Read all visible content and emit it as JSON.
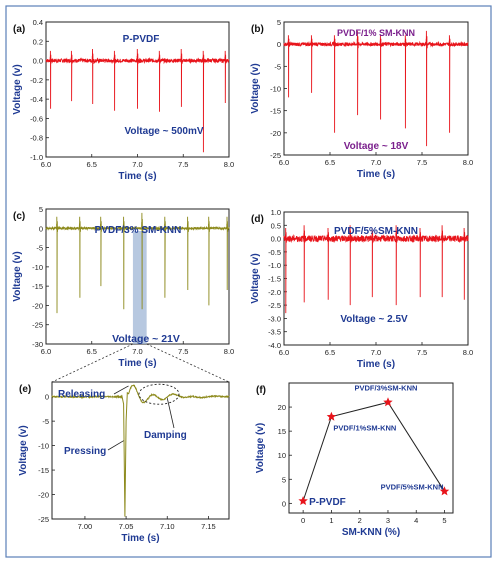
{
  "figure": {
    "border_color": "#5b7fb8",
    "axis_text_color": "#1f3a93",
    "purple_text_color": "#7a1f8c",
    "panel_bg": "#ffffff"
  },
  "chart_data": [
    {
      "id": "a",
      "type": "line",
      "panel_label": "(a)",
      "title": "P-PVDF",
      "annotation": "Voltage ~ 500mV",
      "xlabel": "Time (s)",
      "ylabel": "Voltage (v)",
      "xlim": [
        6.0,
        8.0
      ],
      "ylim": [
        -1.0,
        0.4
      ],
      "xticks": [
        "6.0",
        "6.5",
        "7.0",
        "7.5",
        "8.0"
      ],
      "yticks": [
        "0.4",
        "0.2",
        "0.0",
        "-0.2",
        "-0.4",
        "-0.6",
        "-0.8",
        "-1.0"
      ],
      "color": "#e8141b",
      "baseline": 0.0,
      "noise": 0.02,
      "spikes": [
        {
          "t": 6.05,
          "up": 0.1,
          "down": -0.5
        },
        {
          "t": 6.28,
          "up": 0.1,
          "down": -0.42
        },
        {
          "t": 6.51,
          "up": 0.12,
          "down": -0.45
        },
        {
          "t": 6.75,
          "up": 0.1,
          "down": -0.52
        },
        {
          "t": 7.0,
          "up": 0.12,
          "down": -0.5
        },
        {
          "t": 7.24,
          "up": 0.1,
          "down": -0.53
        },
        {
          "t": 7.48,
          "up": 0.12,
          "down": -0.48
        },
        {
          "t": 7.72,
          "up": 0.1,
          "down": -0.95
        },
        {
          "t": 7.96,
          "up": 0.1,
          "down": -0.44
        }
      ]
    },
    {
      "id": "b",
      "type": "line",
      "panel_label": "(b)",
      "title": "PVDF/1% SM-KNN",
      "annotation": "Voltage ~ 18V",
      "xlabel": "Time (s)",
      "ylabel": "Voltage (v)",
      "xlim": [
        6.0,
        8.0
      ],
      "ylim": [
        -25,
        5
      ],
      "xticks": [
        "6.0",
        "6.5",
        "7.0",
        "7.5",
        "8.0"
      ],
      "yticks": [
        "5",
        "0",
        "-5",
        "-10",
        "-15",
        "-20",
        "-25"
      ],
      "color": "#e8141b",
      "baseline": 0.0,
      "noise": 0.4,
      "spikes": [
        {
          "t": 6.05,
          "up": 2,
          "down": -12
        },
        {
          "t": 6.3,
          "up": 2,
          "down": -11
        },
        {
          "t": 6.55,
          "up": 2,
          "down": -20
        },
        {
          "t": 6.8,
          "up": 3,
          "down": -16
        },
        {
          "t": 7.05,
          "up": 2,
          "down": -17
        },
        {
          "t": 7.32,
          "up": 2,
          "down": -19
        },
        {
          "t": 7.55,
          "up": 3,
          "down": -23
        },
        {
          "t": 7.8,
          "up": 2,
          "down": -20
        }
      ]
    },
    {
      "id": "c",
      "type": "line",
      "panel_label": "(c)",
      "title": "PVDF/3% SM-KNN",
      "annotation": "Voltage ~ 21V",
      "xlabel": "Time (s)",
      "ylabel": "Voltage (v)",
      "xlim": [
        6.0,
        8.0
      ],
      "ylim": [
        -30,
        5
      ],
      "xticks": [
        "6.0",
        "6.5",
        "7.0",
        "7.5",
        "8.0"
      ],
      "yticks": [
        "5",
        "0",
        "-5",
        "-10",
        "-15",
        "-20",
        "-25",
        "-30"
      ],
      "color": "#8d8a1c",
      "baseline": 0.0,
      "noise": 0.3,
      "highlight": [
        6.95,
        7.1
      ],
      "highlight_color": "#9fb5d6",
      "spikes": [
        {
          "t": 6.12,
          "up": 3,
          "down": -22
        },
        {
          "t": 6.37,
          "up": 3,
          "down": -18
        },
        {
          "t": 6.6,
          "up": 3,
          "down": -15
        },
        {
          "t": 6.85,
          "up": 3,
          "down": -21
        },
        {
          "t": 7.05,
          "up": 4,
          "down": -21
        },
        {
          "t": 7.3,
          "up": 3,
          "down": -18
        },
        {
          "t": 7.55,
          "up": 3,
          "down": -16
        },
        {
          "t": 7.78,
          "up": 3,
          "down": -20
        },
        {
          "t": 7.98,
          "up": 3,
          "down": -16
        }
      ]
    },
    {
      "id": "d",
      "type": "line",
      "panel_label": "(d)",
      "title": "PVDF/5%SM-KNN",
      "annotation": "Voltage ~ 2.5V",
      "xlabel": "Time (s)",
      "ylabel": "Voltage (v)",
      "xlim": [
        6.0,
        8.0
      ],
      "ylim": [
        -4.0,
        1.0
      ],
      "xticks": [
        "6.0",
        "6.5",
        "7.0",
        "7.5",
        "8.0"
      ],
      "yticks": [
        "1.0",
        "0.5",
        "0.0",
        "-0.5",
        "-1.0",
        "-1.5",
        "-2.0",
        "-2.5",
        "-3.0",
        "-3.5",
        "-4.0"
      ],
      "color": "#e8141b",
      "baseline": 0.0,
      "noise": 0.12,
      "spikes": [
        {
          "t": 6.02,
          "up": 0.4,
          "down": -2.8
        },
        {
          "t": 6.22,
          "up": 0.5,
          "down": -2.4
        },
        {
          "t": 6.48,
          "up": 0.4,
          "down": -2.3
        },
        {
          "t": 6.72,
          "up": 0.5,
          "down": -2.5
        },
        {
          "t": 6.96,
          "up": 0.4,
          "down": -2.2
        },
        {
          "t": 7.22,
          "up": 0.5,
          "down": -2.5
        },
        {
          "t": 7.48,
          "up": 0.4,
          "down": -2.2
        },
        {
          "t": 7.72,
          "up": 0.5,
          "down": -2.2
        },
        {
          "t": 7.96,
          "up": 0.4,
          "down": -2.3
        }
      ]
    },
    {
      "id": "e",
      "type": "line",
      "panel_label": "(e)",
      "xlabel": "Time (s)",
      "ylabel": "Voltage (v)",
      "xlim": [
        6.96,
        7.175
      ],
      "ylim": [
        -25,
        3
      ],
      "xticks": [
        "7.00",
        "7.05",
        "7.10",
        "7.15"
      ],
      "yticks": [
        "0",
        "-5",
        "-10",
        "-15",
        "-20",
        "-25"
      ],
      "color": "#8d8a1c",
      "labels": {
        "releasing": "Releasing",
        "pressing": "Pressing",
        "damping": "Damping"
      }
    },
    {
      "id": "f",
      "type": "scatter",
      "panel_label": "(f)",
      "xlabel": "SM-KNN (%)",
      "ylabel": "Voltage (v)",
      "xlim": [
        -0.5,
        5.3
      ],
      "ylim": [
        -2,
        25
      ],
      "xticks": [
        "0",
        "1",
        "2",
        "3",
        "4",
        "5"
      ],
      "yticks": [
        "0",
        "5",
        "10",
        "15",
        "20"
      ],
      "marker_color": "#e8141b",
      "x": [
        0,
        1,
        3,
        5
      ],
      "y": [
        0.5,
        18,
        21,
        2.5
      ],
      "point_labels": [
        "P-PVDF",
        "PVDF/1%SM-KNN",
        "PVDF/3%SM-KNN",
        "PVDF/5%SM-KNN"
      ]
    }
  ]
}
